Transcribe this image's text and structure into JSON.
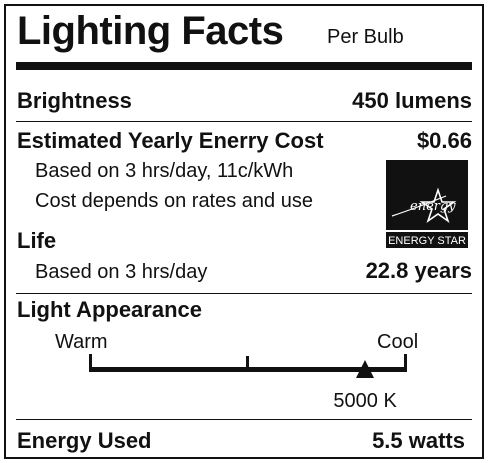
{
  "title": "Lighting Facts",
  "per_unit": "Per Bulb",
  "brightness": {
    "label": "Brightness",
    "value": "450 lumens"
  },
  "cost": {
    "label": "Estimated Yearly Enerry Cost",
    "value": "$0.66",
    "note1": "Based on 3 hrs/day, 11c/kWh",
    "note2": "Cost depends on rates and use"
  },
  "energy_star": {
    "script": "energy",
    "label": "ENERGY STAR"
  },
  "life": {
    "label": "Life",
    "note": "Based on 3 hrs/day",
    "value": "22.8 years"
  },
  "appearance": {
    "label": "Light Appearance",
    "warm": "Warm",
    "cool": "Cool",
    "value": "5000 K",
    "position_fraction": 0.87
  },
  "energy_used": {
    "label": "Energy Used",
    "value": "5.5 watts"
  }
}
